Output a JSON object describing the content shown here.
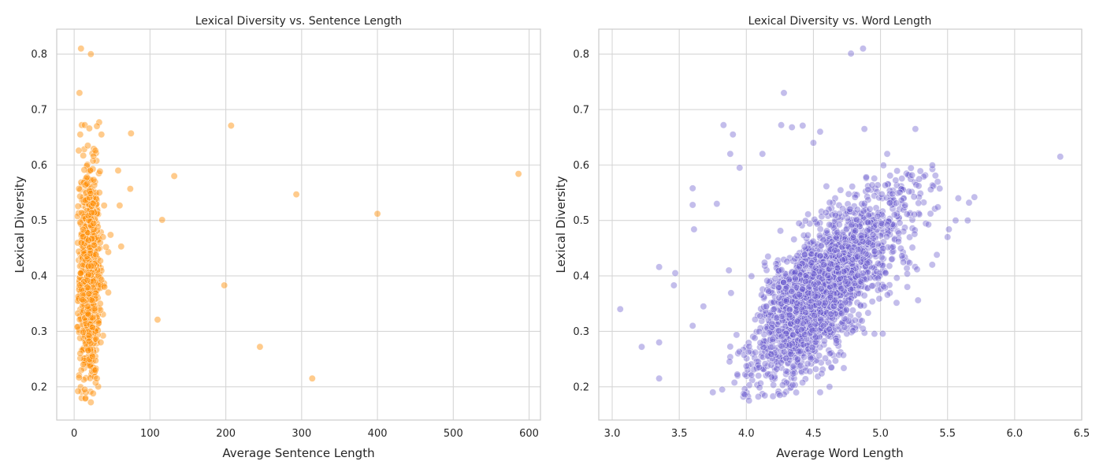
{
  "chart_data": [
    {
      "type": "scatter",
      "title": "Lexical Diversity vs. Sentence Length",
      "xlabel": "Average Sentence Length",
      "ylabel": "Lexical Diversity",
      "xlim": [
        -23,
        615
      ],
      "ylim": [
        0.14,
        0.845
      ],
      "xticks": [
        0,
        100,
        200,
        300,
        400,
        500,
        600
      ],
      "yticks": [
        0.2,
        0.3,
        0.4,
        0.5,
        0.6,
        0.7,
        0.8
      ],
      "xtick_labels": [
        "0",
        "100",
        "200",
        "300",
        "400",
        "500",
        "600"
      ],
      "ytick_labels": [
        "0.2",
        "0.3",
        "0.4",
        "0.5",
        "0.6",
        "0.7",
        "0.8"
      ],
      "grid": true,
      "color": "#ff8c00",
      "opacity": 0.45,
      "points": [
        [
          9,
          0.81
        ],
        [
          22,
          0.8
        ],
        [
          7,
          0.73
        ],
        [
          10,
          0.672
        ],
        [
          14,
          0.672
        ],
        [
          20,
          0.666
        ],
        [
          33,
          0.677
        ],
        [
          30,
          0.67
        ],
        [
          6,
          0.626
        ],
        [
          8,
          0.655
        ],
        [
          36,
          0.655
        ],
        [
          12,
          0.617
        ],
        [
          28,
          0.626
        ],
        [
          18,
          0.635
        ],
        [
          58,
          0.59
        ],
        [
          132,
          0.58
        ],
        [
          75,
          0.657
        ],
        [
          207,
          0.671
        ],
        [
          74,
          0.557
        ],
        [
          60,
          0.527
        ],
        [
          116,
          0.501
        ],
        [
          293,
          0.547
        ],
        [
          400,
          0.512
        ],
        [
          586,
          0.584
        ],
        [
          48,
          0.474
        ],
        [
          62,
          0.453
        ],
        [
          45,
          0.443
        ],
        [
          38,
          0.47
        ],
        [
          42,
          0.452
        ],
        [
          40,
          0.38
        ],
        [
          36,
          0.393
        ],
        [
          45,
          0.37
        ],
        [
          198,
          0.383
        ],
        [
          110,
          0.321
        ],
        [
          245,
          0.272
        ],
        [
          314,
          0.215
        ],
        [
          5,
          0.192
        ],
        [
          14,
          0.195
        ],
        [
          22,
          0.172
        ],
        [
          30,
          0.215
        ],
        [
          35,
          0.28
        ],
        [
          28,
          0.23
        ],
        [
          25,
          0.188
        ],
        [
          8,
          0.26
        ],
        [
          12,
          0.24
        ]
      ],
      "cluster": {
        "x_range": [
          4,
          40
        ],
        "x_center": 20,
        "y_range": [
          0.17,
          0.63
        ],
        "count": 950
      }
    },
    {
      "type": "scatter",
      "title": "Lexical Diversity vs. Word Length",
      "xlabel": "Average Word Length",
      "ylabel": "Lexical Diversity",
      "xlim": [
        2.9,
        6.5
      ],
      "ylim": [
        0.14,
        0.845
      ],
      "xticks": [
        3.0,
        3.5,
        4.0,
        4.5,
        5.0,
        5.5,
        6.0,
        6.5
      ],
      "yticks": [
        0.2,
        0.3,
        0.4,
        0.5,
        0.6,
        0.7,
        0.8
      ],
      "xtick_labels": [
        "3.0",
        "3.5",
        "4.0",
        "4.5",
        "5.0",
        "5.5",
        "6.0",
        "6.5"
      ],
      "ytick_labels": [
        "0.2",
        "0.3",
        "0.4",
        "0.5",
        "0.6",
        "0.7",
        "0.8"
      ],
      "grid": true,
      "color": "#6a5acd",
      "opacity": 0.4,
      "points": [
        [
          4.78,
          0.801
        ],
        [
          4.87,
          0.81
        ],
        [
          4.28,
          0.73
        ],
        [
          3.83,
          0.672
        ],
        [
          3.9,
          0.655
        ],
        [
          4.26,
          0.672
        ],
        [
          4.34,
          0.668
        ],
        [
          4.42,
          0.671
        ],
        [
          4.88,
          0.665
        ],
        [
          5.26,
          0.665
        ],
        [
          6.34,
          0.615
        ],
        [
          5.7,
          0.542
        ],
        [
          5.66,
          0.532
        ],
        [
          5.58,
          0.54
        ],
        [
          5.65,
          0.5
        ],
        [
          5.56,
          0.5
        ],
        [
          5.51,
          0.484
        ],
        [
          5.5,
          0.47
        ],
        [
          5.42,
          0.438
        ],
        [
          3.06,
          0.34
        ],
        [
          3.22,
          0.272
        ],
        [
          3.35,
          0.215
        ],
        [
          3.35,
          0.28
        ],
        [
          3.35,
          0.416
        ],
        [
          3.47,
          0.405
        ],
        [
          3.46,
          0.383
        ],
        [
          3.6,
          0.558
        ],
        [
          3.6,
          0.528
        ],
        [
          3.61,
          0.484
        ],
        [
          3.6,
          0.31
        ],
        [
          3.68,
          0.345
        ],
        [
          3.75,
          0.19
        ],
        [
          3.82,
          0.195
        ],
        [
          3.87,
          0.41
        ],
        [
          3.88,
          0.62
        ],
        [
          3.95,
          0.595
        ],
        [
          3.78,
          0.53
        ],
        [
          4.02,
          0.175
        ],
        [
          4.09,
          0.22
        ],
        [
          4.25,
          0.185
        ],
        [
          4.55,
          0.19
        ],
        [
          4.62,
          0.2
        ],
        [
          5.28,
          0.356
        ],
        [
          5.2,
          0.38
        ],
        [
          4.12,
          0.62
        ],
        [
          4.55,
          0.66
        ],
        [
          4.5,
          0.64
        ],
        [
          5.05,
          0.62
        ]
      ],
      "cluster": {
        "x_center": 4.5,
        "x_spread": 0.22,
        "y_base": 0.35,
        "count": 2200
      }
    }
  ]
}
